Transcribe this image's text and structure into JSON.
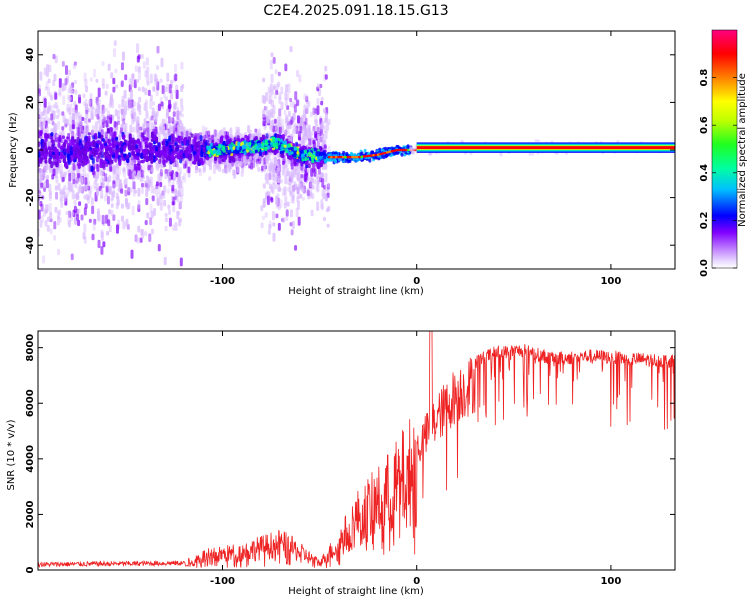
{
  "title": "C2E4.2025.091.18.15.G13",
  "chart_data": [
    {
      "type": "heatmap",
      "xlabel": "Height of straight line (km)",
      "ylabel": "Frequency (Hz)",
      "xlim": [
        -195,
        133
      ],
      "ylim": [
        -50,
        50
      ],
      "x_ticks": [
        -100,
        0,
        100
      ],
      "y_ticks": [
        -40,
        -20,
        0,
        20,
        40
      ],
      "colorbar": {
        "label": "Normalized spectral amplitude",
        "range": [
          0,
          1
        ],
        "ticks": [
          0.0,
          0.2,
          0.4,
          0.6,
          0.8
        ],
        "tick_labels": [
          "0.0",
          "0.2",
          "0.4",
          "0.6",
          "0.8"
        ],
        "colormap": [
          "#ffffff",
          "#d8b8ff",
          "#8000ff",
          "#0000ff",
          "#00c0ff",
          "#00ff80",
          "#40ff00",
          "#ffff00",
          "#ff8000",
          "#ff0000",
          "#ff0080"
        ]
      },
      "ridge": [
        {
          "x": -100,
          "f": 0
        },
        {
          "x": -90,
          "f": 1
        },
        {
          "x": -80,
          "f": 2
        },
        {
          "x": -72,
          "f": 3
        },
        {
          "x": -60,
          "f": -2
        },
        {
          "x": -45,
          "f": -3
        },
        {
          "x": -30,
          "f": -3
        },
        {
          "x": -20,
          "f": -2
        },
        {
          "x": -10,
          "f": 0
        },
        {
          "x": 0,
          "f": 0
        },
        {
          "x": 10,
          "f": 0
        },
        {
          "x": 20,
          "f": 1
        },
        {
          "x": 133,
          "f": 1
        }
      ],
      "grid": false
    },
    {
      "type": "line",
      "xlabel": "Height of straight line (km)",
      "ylabel": "SNR (10 * v/v)",
      "xlim": [
        -195,
        133
      ],
      "ylim": [
        0,
        8600
      ],
      "x_ticks": [
        -100,
        0,
        100
      ],
      "y_ticks": [
        0,
        2000,
        4000,
        6000,
        8000
      ],
      "color": "#ee2222",
      "envelope": [
        {
          "x": -195,
          "snr": 200
        },
        {
          "x": -120,
          "snr": 250
        },
        {
          "x": -110,
          "snr": 600
        },
        {
          "x": -90,
          "snr": 800
        },
        {
          "x": -70,
          "snr": 1200
        },
        {
          "x": -60,
          "snr": 800
        },
        {
          "x": -50,
          "snr": 300
        },
        {
          "x": -40,
          "snr": 1200
        },
        {
          "x": -30,
          "snr": 2400
        },
        {
          "x": -20,
          "snr": 3000
        },
        {
          "x": -10,
          "snr": 3800
        },
        {
          "x": 0,
          "snr": 4800
        },
        {
          "x": 10,
          "snr": 6000
        },
        {
          "x": 20,
          "snr": 7000
        },
        {
          "x": 30,
          "snr": 7500
        },
        {
          "x": 40,
          "snr": 7800
        },
        {
          "x": 55,
          "snr": 7900
        },
        {
          "x": 70,
          "snr": 7600
        },
        {
          "x": 90,
          "snr": 7700
        },
        {
          "x": 110,
          "snr": 7600
        },
        {
          "x": 133,
          "snr": 7500
        }
      ],
      "grid": false
    }
  ]
}
